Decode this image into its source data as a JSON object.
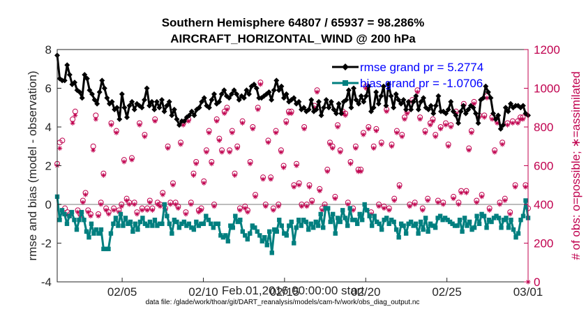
{
  "chart_data": {
    "type": "line",
    "title": "Southern Hemisphere 64807 / 65937 = 98.286%",
    "subtitle": "AIRCRAFT_HORIZONTAL_WIND @ 200 hPa",
    "xlabel": "Feb.01,2016 00:00:00 start",
    "ylabel": "rmse and bias (model - observation)",
    "ylabel_right": "# of obs: o=possible; ∗=assimilated",
    "footnote": "data file: /glade/work/thoar/git/DART_reanalysis/models/cam-fv/work/obs_diag_output.nc",
    "x_start": "02/01",
    "x_end": "03/01",
    "xlim_days": [
      0,
      29
    ],
    "ylim": [
      -4,
      8
    ],
    "ylim_right": [
      0,
      1200
    ],
    "grid": false,
    "zero_line": true,
    "x_ticks": [
      {
        "day": 4,
        "label": "02/05"
      },
      {
        "day": 9,
        "label": "02/10"
      },
      {
        "day": 14,
        "label": "02/15"
      },
      {
        "day": 19,
        "label": "02/20"
      },
      {
        "day": 24,
        "label": "02/25"
      },
      {
        "day": 29,
        "label": "03/01"
      }
    ],
    "y_ticks": [
      "-4",
      "-2",
      "0",
      "2",
      "4",
      "6",
      "8"
    ],
    "y_ticks_right": [
      "0",
      "200",
      "400",
      "600",
      "800",
      "1000",
      "1200"
    ],
    "legend_position": "top-right",
    "series": [
      {
        "name": "rmse grand pr = 5.2774",
        "color": "#000000",
        "marker": "diamond",
        "axis": "left",
        "values": [
          7.7,
          6.5,
          6.4,
          6.4,
          7.2,
          6.7,
          6.2,
          6.3,
          5.9,
          5.8,
          5.5,
          6.7,
          6.5,
          5.9,
          5.7,
          5.4,
          5.2,
          5.8,
          6.4,
          6.0,
          5.5,
          5.2,
          5.3,
          4.9,
          5.0,
          4.4,
          5.7,
          5.0,
          4.5,
          5.1,
          5.3,
          4.9,
          5.2,
          5.1,
          5.0,
          5.4,
          6.0,
          5.1,
          5.3,
          4.9,
          5.3,
          5.0,
          5.4,
          4.8,
          5.1,
          5.3,
          4.6,
          4.9,
          4.4,
          4.1,
          4.3,
          4.3,
          4.5,
          4.6,
          4.8,
          4.6,
          4.9,
          5.0,
          5.3,
          5.5,
          5.1,
          5.0,
          5.4,
          5.7,
          5.2,
          5.3,
          5.7,
          5.9,
          5.6,
          5.5,
          5.7,
          5.9,
          5.7,
          5.4,
          5.6,
          5.5,
          5.9,
          5.7,
          6.1,
          6.2,
          6.0,
          5.5,
          5.5,
          5.6,
          5.7,
          5.8,
          5.4,
          5.9,
          6.4,
          5.9,
          6.1,
          5.5,
          5.7,
          5.3,
          5.4,
          5.5,
          5.2,
          5.3,
          4.9,
          5.0,
          4.8,
          4.9,
          5.4,
          4.8,
          4.9,
          5.3,
          4.6,
          5.0,
          5.4,
          5.0,
          5.3,
          4.9,
          4.7,
          5.2,
          4.7,
          5.3,
          5.4,
          5.9,
          5.0,
          6.0,
          5.4,
          5.2,
          5.6,
          5.3,
          5.6,
          6.1,
          4.8,
          5.0,
          5.8,
          5.2,
          5.6,
          6.1,
          5.1,
          6.2,
          5.6,
          5.0,
          5.7,
          5.4,
          5.2,
          5.4,
          4.9,
          5.3,
          4.9,
          5.3,
          5.6,
          4.9,
          5.3,
          5.5,
          5.0,
          4.9,
          5.1,
          4.7,
          5.1,
          5.6,
          4.8,
          4.8,
          4.7,
          4.9,
          5.3,
          4.8,
          4.6,
          4.2,
          4.8,
          5.1,
          4.7,
          4.9,
          5.1,
          5.0,
          4.7,
          4.2,
          5.4,
          5.5,
          6.1,
          5.8,
          5.5,
          4.7,
          4.4,
          4.6,
          3.9,
          4.1,
          5.0,
          4.8,
          5.2,
          5.0,
          5.1,
          5.1,
          5.0,
          5.1,
          4.7,
          4.6
        ]
      },
      {
        "name": "bias grand pr = -1.0706",
        "color": "#007f7f",
        "marker": "square",
        "axis": "left",
        "values": [
          0.4,
          -0.8,
          -0.3,
          -0.5,
          -1.0,
          -0.6,
          -0.4,
          -0.8,
          -1.3,
          -0.8,
          -0.4,
          -0.8,
          -1.4,
          -1.7,
          -1.0,
          -1.5,
          -1.3,
          -1.5,
          -1.3,
          -2.3,
          -2.3,
          -2.3,
          -1.5,
          -1.0,
          -0.7,
          -1.1,
          -0.5,
          -1.1,
          -0.7,
          -1.0,
          -0.9,
          -1.4,
          -1.0,
          -1.3,
          -0.9,
          -0.7,
          -1.0,
          -1.1,
          -0.9,
          -1.1,
          -0.8,
          -1.1,
          -1.0,
          -1.0,
          0.0,
          -0.6,
          -1.0,
          -1.5,
          -0.8,
          -0.9,
          -1.2,
          -1.0,
          -0.9,
          -1.1,
          -1.0,
          -1.2,
          -1.3,
          -0.9,
          -1.1,
          -1.0,
          -1.0,
          -0.6,
          -0.8,
          -1.0,
          -1.2,
          -1.0,
          -1.0,
          -1.6,
          -1.7,
          -1.6,
          -1.9,
          -1.1,
          -1.2,
          -0.6,
          -0.9,
          -0.8,
          -1.4,
          -1.6,
          -1.8,
          -1.5,
          -1.1,
          -1.2,
          -1.4,
          -1.6,
          -1.9,
          -1.7,
          -2.1,
          -1.4,
          -2.5,
          -1.3,
          -1.4,
          -0.8,
          -1.1,
          -1.5,
          -1.6,
          -1.1,
          -0.9,
          -2.0,
          -1.2,
          -0.8,
          -1.1,
          -0.8,
          -0.9,
          -1.3,
          -1.0,
          -1.2,
          -0.9,
          -1.1,
          -0.5,
          -1.2,
          -0.2,
          -0.2,
          -0.9,
          -0.5,
          -1.5,
          -0.7,
          -0.9,
          -0.3,
          -0.7,
          -1.1,
          -0.2,
          -0.8,
          -0.8,
          -1.0,
          -0.5,
          -0.8,
          0.0,
          -0.3,
          -0.6,
          -1.1,
          -0.6,
          -0.9,
          -1.0,
          -1.3,
          -0.8,
          -0.7,
          -1.0,
          -0.8,
          -0.9,
          -1.3,
          -1.7,
          -1.0,
          -1.1,
          -1.5,
          -1.0,
          -0.9,
          -1.1,
          -1.0,
          -1.5,
          -0.9,
          -1.3,
          -0.7,
          -1.4,
          -1.0,
          -1.1,
          -1.2,
          -0.7,
          -0.6,
          -0.8,
          -0.7,
          -0.8,
          -0.9,
          -1.0,
          -1.1,
          -1.1,
          -0.8,
          -1.4,
          -0.7,
          -1.1,
          -0.9,
          -1.3,
          -1.2,
          -0.6,
          -1.0,
          -0.5,
          -0.6,
          -1.2,
          -0.8,
          -0.9,
          -0.7,
          -0.6,
          -0.7,
          -1.2,
          -0.8,
          -0.7,
          -1.2,
          -0.8,
          -1.3,
          -1.7,
          -1.5,
          -0.8,
          -0.6,
          0.2,
          -0.7
        ]
      },
      {
        "name": "obs possible",
        "color": "#c0004e",
        "marker": "circle",
        "axis": "right",
        "values": [
          610,
          720,
          730,
          380,
          360,
          350,
          840,
          880,
          370,
          350,
          420,
          460,
          370,
          350,
          700,
          860,
          350,
          410,
          560,
          380,
          360,
          820,
          380,
          780,
          370,
          400,
          630,
          430,
          410,
          640,
          410,
          360,
          820,
          380,
          760,
          380,
          420,
          380,
          840,
          410,
          400,
          460,
          380,
          700,
          410,
          510,
          410,
          390,
          720,
          820,
          360,
          840,
          410,
          560,
          620,
          370,
          380,
          520,
          680,
          780,
          620,
          400,
          840,
          740,
          680,
          880,
          900,
          680,
          780,
          560,
          700,
          380,
          830,
          390,
          370,
          620,
          800,
          450,
          900,
          1030,
          540,
          400,
          730,
          540,
          380,
          780,
          400,
          680,
          600,
          830,
          880,
          880,
          500,
          610,
          510,
          400,
          800,
          400,
          500,
          420,
          910,
          990,
          480,
          380,
          400,
          580,
          720,
          700,
          440,
          810,
          680,
          880,
          870,
          410,
          620,
          380,
          700,
          580,
          580,
          770,
          1010,
          800,
          360,
          700,
          790,
          400,
          720,
          390,
          890,
          380,
          710,
          430,
          780,
          500,
          760,
          850,
          880,
          400,
          940,
          410,
          990,
          850,
          380,
          780,
          430,
          820,
          840,
          760,
          420,
          800,
          410,
          820,
          710,
          810,
          440,
          880,
          410,
          470,
          920,
          470,
          690,
          780,
          930,
          420,
          860,
          450,
          860,
          960,
          380,
          850,
          680,
          830,
          410,
          720,
          430,
          820,
          360,
          830,
          500,
          830,
          850,
          850,
          500,
          380
        ]
      },
      {
        "name": "obs assimilated",
        "color": "#c0004e",
        "marker": "star",
        "axis": "right",
        "values": [
          600,
          690,
          360,
          350,
          345,
          340,
          820,
          860,
          360,
          340,
          410,
          450,
          360,
          340,
          680,
          840,
          340,
          400,
          550,
          370,
          350,
          810,
          370,
          770,
          360,
          390,
          620,
          420,
          400,
          630,
          400,
          350,
          810,
          370,
          750,
          370,
          410,
          370,
          830,
          400,
          390,
          450,
          370,
          690,
          400,
          500,
          400,
          380,
          710,
          810,
          350,
          830,
          400,
          550,
          610,
          360,
          370,
          510,
          670,
          770,
          610,
          390,
          830,
          730,
          670,
          870,
          890,
          670,
          770,
          550,
          690,
          370,
          820,
          380,
          360,
          610,
          790,
          440,
          890,
          1020,
          530,
          390,
          720,
          530,
          370,
          770,
          390,
          670,
          590,
          820,
          870,
          870,
          490,
          600,
          500,
          390,
          790,
          390,
          490,
          410,
          900,
          980,
          470,
          370,
          390,
          570,
          710,
          690,
          430,
          800,
          670,
          870,
          860,
          400,
          610,
          370,
          690,
          570,
          570,
          760,
          1000,
          790,
          350,
          690,
          780,
          390,
          710,
          380,
          880,
          370,
          700,
          420,
          770,
          490,
          750,
          840,
          870,
          390,
          930,
          400,
          980,
          840,
          370,
          770,
          420,
          810,
          830,
          750,
          410,
          790,
          400,
          810,
          700,
          800,
          430,
          870,
          400,
          460,
          910,
          460,
          680,
          770,
          920,
          410,
          850,
          440,
          850,
          950,
          370,
          840,
          670,
          820,
          400,
          710,
          420,
          810,
          350,
          820,
          490,
          820,
          840,
          840,
          490,
          0
        ]
      }
    ]
  }
}
